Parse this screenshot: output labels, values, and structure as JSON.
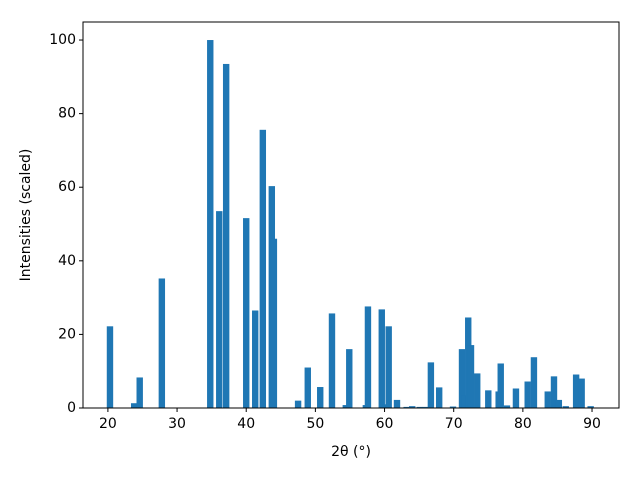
{
  "chart_data": {
    "type": "bar",
    "xlabel": "2θ (°)",
    "ylabel": "Intensities (scaled)",
    "color": "#1f77b4",
    "x": [
      20.3,
      23.8,
      24.6,
      27.8,
      34.8,
      36.1,
      37.1,
      40.0,
      41.3,
      42.4,
      43.7,
      44.0,
      47.5,
      48.9,
      50.7,
      52.4,
      54.4,
      54.9,
      57.3,
      57.6,
      59.6,
      60.1,
      60.6,
      61.8,
      63.2,
      64.0,
      65.1,
      66.0,
      66.7,
      67.9,
      69.9,
      71.2,
      71.6,
      72.1,
      72.5,
      73.4,
      75.0,
      76.5,
      76.8,
      77.7,
      79.0,
      80.7,
      81.6,
      83.6,
      84.5,
      85.2,
      86.2,
      87.7,
      88.5,
      89.8
    ],
    "values": [
      22.2,
      1.3,
      8.3,
      35.2,
      100,
      53.5,
      93.5,
      51.6,
      26.5,
      75.6,
      60.3,
      46,
      2,
      11,
      5.7,
      25.7,
      0.8,
      16,
      0.8,
      27.6,
      26.8,
      1,
      22.2,
      2.2,
      0.3,
      0.5,
      0.3,
      0.3,
      12.4,
      5.6,
      0.4,
      16,
      3.5,
      24.6,
      17.1,
      9.4,
      4.8,
      4.5,
      12.1,
      0.7,
      5.3,
      7.2,
      13.8,
      4.5,
      8.6,
      2.2,
      0.5,
      9.1,
      8,
      0.5
    ],
    "xlim": [
      16.4,
      93.9
    ],
    "ylim": [
      0,
      104.9
    ],
    "xticks": [
      20,
      30,
      40,
      50,
      60,
      70,
      80,
      90
    ],
    "yticks": [
      0,
      20,
      40,
      60,
      80,
      100
    ]
  }
}
